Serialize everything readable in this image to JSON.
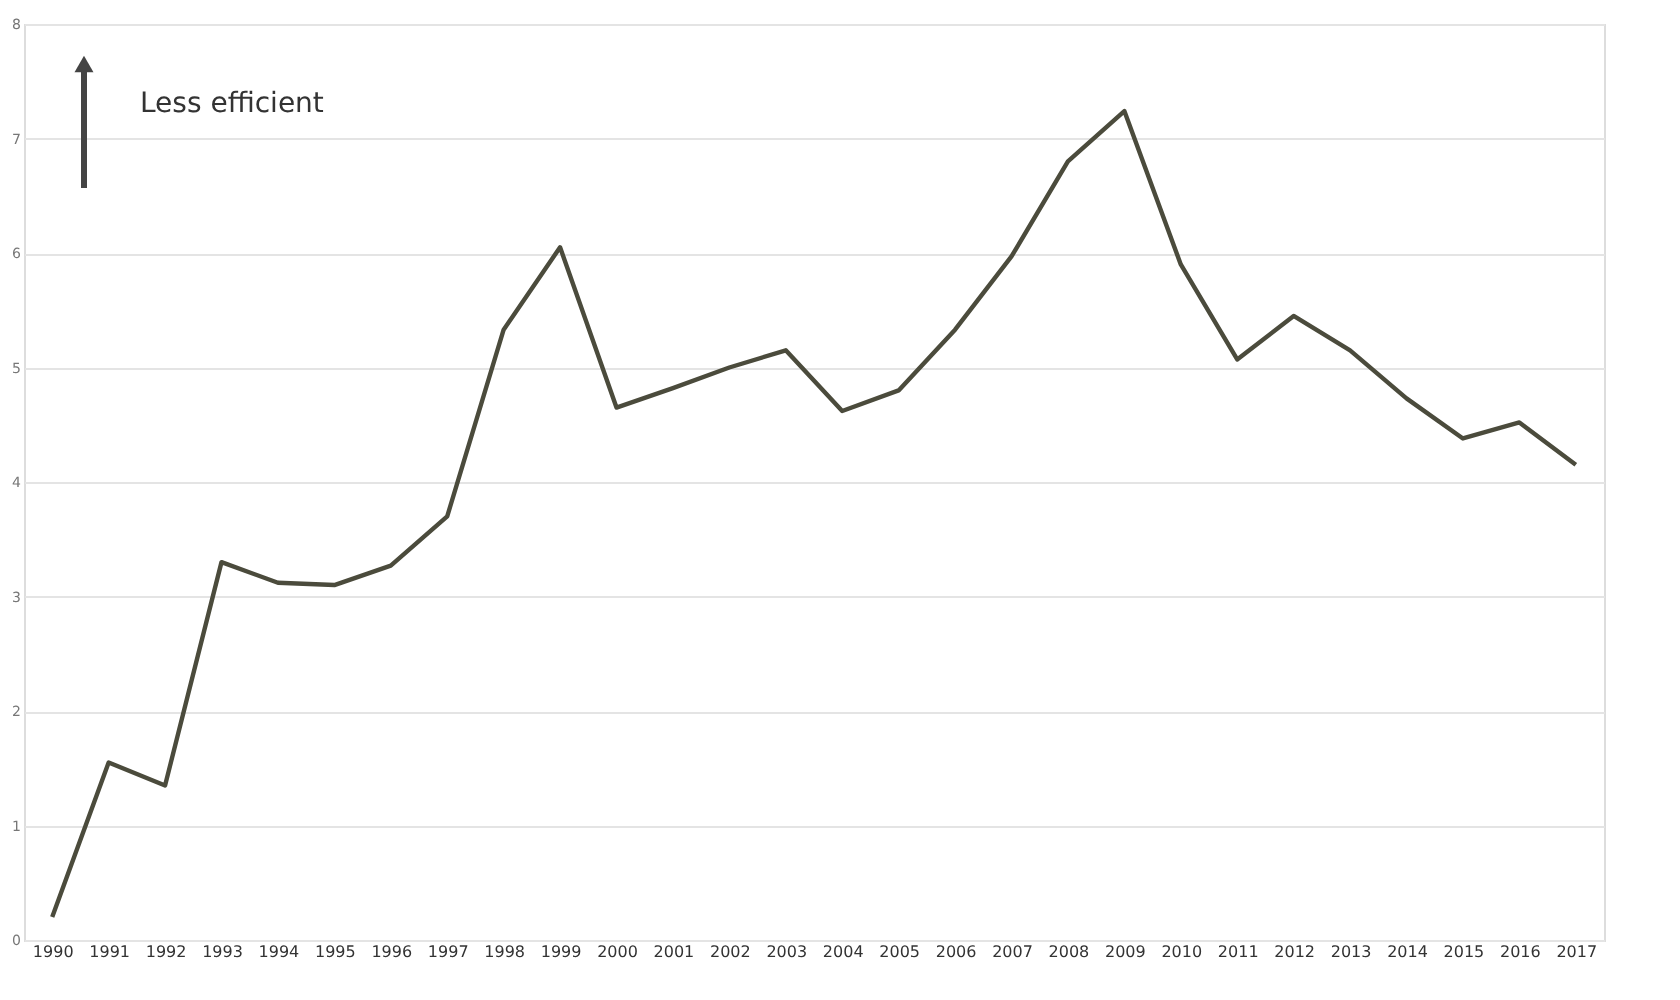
{
  "chart_data": {
    "type": "line",
    "categories": [
      "1990",
      "1991",
      "1992",
      "1993",
      "1994",
      "1995",
      "1996",
      "1997",
      "1998",
      "1999",
      "2000",
      "2001",
      "2002",
      "2003",
      "2004",
      "2005",
      "2006",
      "2007",
      "2008",
      "2009",
      "2010",
      "2011",
      "2012",
      "2013",
      "2014",
      "2015",
      "2016",
      "2017"
    ],
    "series": [
      {
        "color": "#4b4b3c",
        "values": [
          0.2,
          1.55,
          1.35,
          3.3,
          3.12,
          3.1,
          3.27,
          3.7,
          5.33,
          6.05,
          4.65,
          4.82,
          5.0,
          5.15,
          4.62,
          4.8,
          5.33,
          5.97,
          6.8,
          7.24,
          5.9,
          5.07,
          5.45,
          5.15,
          4.73,
          4.38,
          4.52,
          4.15
        ]
      }
    ],
    "ylim": [
      0,
      8
    ],
    "yticks": [
      0,
      1,
      2,
      3,
      4,
      5,
      6,
      7,
      8
    ],
    "grid": "y",
    "legend": false,
    "marker": "none",
    "line_style": "solid",
    "annotations": [
      "Less efficient"
    ]
  }
}
